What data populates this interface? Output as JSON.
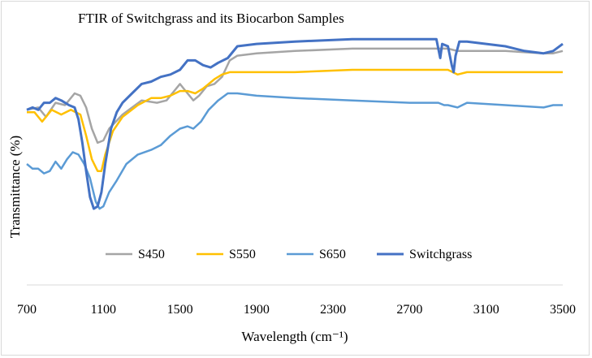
{
  "chart_data": {
    "type": "line",
    "title": "FTIR of Switchgrass and its Biocarbon Samples",
    "xlabel": "Wavelength (cm⁻¹)",
    "ylabel": "Transmittance (%)",
    "xlim": [
      700,
      3500
    ],
    "ylim": [
      0,
      100
    ],
    "xticks": [
      "700",
      "1100",
      "1500",
      "1900",
      "2300",
      "2700",
      "3100",
      "3500"
    ],
    "legend_position": "bottom-center",
    "series": [
      {
        "name": "S450",
        "color": "#a5a5a5",
        "points": [
          [
            700,
            63
          ],
          [
            760,
            64
          ],
          [
            800,
            60
          ],
          [
            850,
            66
          ],
          [
            900,
            65
          ],
          [
            950,
            70
          ],
          [
            980,
            69
          ],
          [
            1010,
            64
          ],
          [
            1040,
            55
          ],
          [
            1070,
            49
          ],
          [
            1100,
            50
          ],
          [
            1130,
            55
          ],
          [
            1200,
            61
          ],
          [
            1300,
            67
          ],
          [
            1380,
            66
          ],
          [
            1430,
            67
          ],
          [
            1470,
            71
          ],
          [
            1500,
            74
          ],
          [
            1530,
            71
          ],
          [
            1570,
            67
          ],
          [
            1600,
            69
          ],
          [
            1640,
            73
          ],
          [
            1680,
            74
          ],
          [
            1720,
            77
          ],
          [
            1760,
            84
          ],
          [
            1800,
            86
          ],
          [
            1900,
            87
          ],
          [
            2100,
            88
          ],
          [
            2400,
            89
          ],
          [
            2700,
            89
          ],
          [
            2850,
            89
          ],
          [
            2900,
            89
          ],
          [
            2950,
            88
          ],
          [
            3000,
            88
          ],
          [
            3200,
            88
          ],
          [
            3400,
            87
          ],
          [
            3450,
            87
          ],
          [
            3500,
            88
          ]
        ]
      },
      {
        "name": "S550",
        "color": "#ffc000",
        "points": [
          [
            700,
            62
          ],
          [
            740,
            62
          ],
          [
            780,
            58
          ],
          [
            830,
            63
          ],
          [
            880,
            61
          ],
          [
            930,
            63
          ],
          [
            980,
            61
          ],
          [
            1010,
            52
          ],
          [
            1040,
            42
          ],
          [
            1070,
            37
          ],
          [
            1090,
            37
          ],
          [
            1110,
            44
          ],
          [
            1150,
            54
          ],
          [
            1200,
            60
          ],
          [
            1280,
            65
          ],
          [
            1350,
            68
          ],
          [
            1400,
            68
          ],
          [
            1450,
            69
          ],
          [
            1500,
            71
          ],
          [
            1540,
            71
          ],
          [
            1580,
            70
          ],
          [
            1620,
            72
          ],
          [
            1680,
            76
          ],
          [
            1720,
            78
          ],
          [
            1760,
            79
          ],
          [
            1800,
            79
          ],
          [
            1900,
            79
          ],
          [
            2100,
            79
          ],
          [
            2400,
            80
          ],
          [
            2700,
            80
          ],
          [
            2850,
            80
          ],
          [
            2900,
            80
          ],
          [
            2950,
            78
          ],
          [
            3000,
            79
          ],
          [
            3200,
            79
          ],
          [
            3400,
            79
          ],
          [
            3500,
            79
          ]
        ]
      },
      {
        "name": "S650",
        "color": "#5b9bd5",
        "points": [
          [
            700,
            40
          ],
          [
            730,
            38
          ],
          [
            760,
            38
          ],
          [
            790,
            36
          ],
          [
            820,
            37
          ],
          [
            850,
            41
          ],
          [
            880,
            38
          ],
          [
            910,
            42
          ],
          [
            940,
            45
          ],
          [
            970,
            44
          ],
          [
            1000,
            40
          ],
          [
            1030,
            34
          ],
          [
            1060,
            24
          ],
          [
            1080,
            21
          ],
          [
            1100,
            22
          ],
          [
            1130,
            28
          ],
          [
            1170,
            33
          ],
          [
            1220,
            40
          ],
          [
            1280,
            44
          ],
          [
            1350,
            46
          ],
          [
            1400,
            48
          ],
          [
            1450,
            52
          ],
          [
            1500,
            55
          ],
          [
            1540,
            56
          ],
          [
            1570,
            55
          ],
          [
            1610,
            58
          ],
          [
            1650,
            63
          ],
          [
            1700,
            67
          ],
          [
            1750,
            70
          ],
          [
            1800,
            70
          ],
          [
            1900,
            69
          ],
          [
            2100,
            68
          ],
          [
            2400,
            67
          ],
          [
            2700,
            66
          ],
          [
            2850,
            66
          ],
          [
            2880,
            65
          ],
          [
            2900,
            65
          ],
          [
            2950,
            64
          ],
          [
            3000,
            66
          ],
          [
            3200,
            65
          ],
          [
            3400,
            64
          ],
          [
            3450,
            65
          ],
          [
            3500,
            65
          ]
        ]
      },
      {
        "name": "Switchgrass",
        "color": "#4472c4",
        "points": [
          [
            700,
            63
          ],
          [
            730,
            64
          ],
          [
            760,
            63
          ],
          [
            790,
            66
          ],
          [
            820,
            66
          ],
          [
            850,
            68
          ],
          [
            880,
            67
          ],
          [
            920,
            65
          ],
          [
            950,
            64
          ],
          [
            970,
            59
          ],
          [
            990,
            49
          ],
          [
            1010,
            37
          ],
          [
            1030,
            26
          ],
          [
            1050,
            21
          ],
          [
            1070,
            22
          ],
          [
            1090,
            28
          ],
          [
            1110,
            40
          ],
          [
            1140,
            55
          ],
          [
            1170,
            62
          ],
          [
            1200,
            66
          ],
          [
            1250,
            70
          ],
          [
            1300,
            74
          ],
          [
            1350,
            75
          ],
          [
            1400,
            77
          ],
          [
            1450,
            78
          ],
          [
            1500,
            80
          ],
          [
            1540,
            84
          ],
          [
            1580,
            84
          ],
          [
            1620,
            82
          ],
          [
            1660,
            81
          ],
          [
            1700,
            83
          ],
          [
            1750,
            85
          ],
          [
            1800,
            90
          ],
          [
            1900,
            91
          ],
          [
            2100,
            92
          ],
          [
            2400,
            93
          ],
          [
            2700,
            93
          ],
          [
            2840,
            93
          ],
          [
            2860,
            85
          ],
          [
            2870,
            91
          ],
          [
            2900,
            90
          ],
          [
            2920,
            82
          ],
          [
            2930,
            79
          ],
          [
            2940,
            86
          ],
          [
            2960,
            92
          ],
          [
            3000,
            92
          ],
          [
            3100,
            91
          ],
          [
            3200,
            90
          ],
          [
            3300,
            88
          ],
          [
            3400,
            87
          ],
          [
            3450,
            88
          ],
          [
            3500,
            91
          ]
        ]
      }
    ]
  }
}
